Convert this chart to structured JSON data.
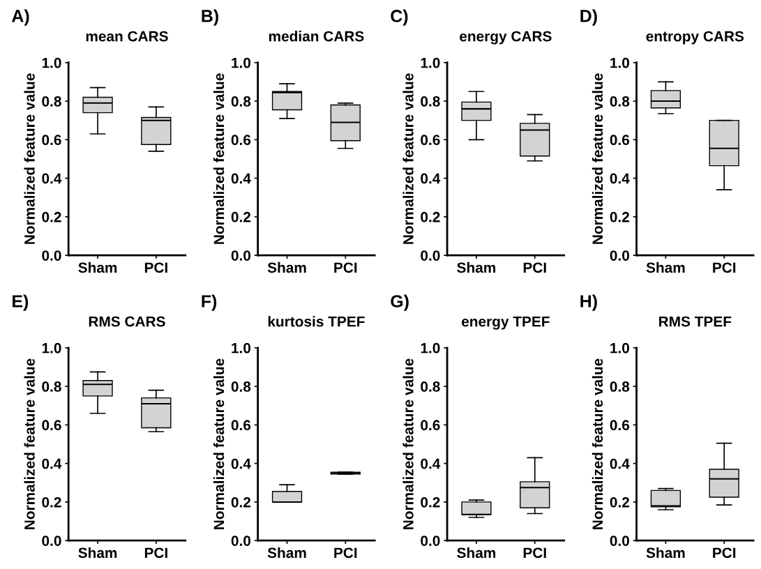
{
  "chart_data": [
    {
      "type": "box",
      "title": "mean CARS",
      "annotations": [
        "A)"
      ],
      "ylabel": "Normalized feature value",
      "categories": [
        "Sham",
        "PCI"
      ],
      "color": "#d3d3d3",
      "ylim": [
        0,
        1
      ],
      "yticks": [
        {
          "value": 0,
          "label": "0.0"
        },
        {
          "value": 0.2,
          "label": "0.2"
        },
        {
          "value": 0.4,
          "label": "0.4"
        },
        {
          "value": 0.6,
          "label": "0.6"
        },
        {
          "value": 0.8,
          "label": "0.8"
        },
        {
          "value": 1,
          "label": "1.0"
        }
      ],
      "boxes": [
        {
          "low": 0.63,
          "q1": 0.74,
          "median": 0.79,
          "q3": 0.82,
          "high": 0.87
        },
        {
          "low": 0.54,
          "q1": 0.575,
          "median": 0.7,
          "q3": 0.715,
          "high": 0.77
        }
      ]
    },
    {
      "type": "box",
      "title": "median CARS",
      "annotations": [
        "B)"
      ],
      "ylabel": "Normalized feature value",
      "categories": [
        "Sham",
        "PCI"
      ],
      "color": "#d3d3d3",
      "ylim": [
        0,
        1
      ],
      "yticks": [
        {
          "value": 0,
          "label": "0.0"
        },
        {
          "value": 0.2,
          "label": "0.2"
        },
        {
          "value": 0.4,
          "label": "0.4"
        },
        {
          "value": 0.6,
          "label": "0.6"
        },
        {
          "value": 0.8,
          "label": "0.8"
        },
        {
          "value": 1,
          "label": "1.0"
        }
      ],
      "boxes": [
        {
          "low": 0.71,
          "q1": 0.755,
          "median": 0.845,
          "q3": 0.85,
          "high": 0.89
        },
        {
          "low": 0.555,
          "q1": 0.595,
          "median": 0.69,
          "q3": 0.78,
          "high": 0.79
        }
      ]
    },
    {
      "type": "box",
      "title": "energy CARS",
      "annotations": [
        "C)"
      ],
      "ylabel": "Normalized feature value",
      "categories": [
        "Sham",
        "PCI"
      ],
      "color": "#d3d3d3",
      "ylim": [
        0,
        1
      ],
      "yticks": [
        {
          "value": 0,
          "label": "0.0"
        },
        {
          "value": 0.2,
          "label": "0.2"
        },
        {
          "value": 0.4,
          "label": "0.4"
        },
        {
          "value": 0.6,
          "label": "0.6"
        },
        {
          "value": 0.8,
          "label": "0.8"
        },
        {
          "value": 1,
          "label": "1.0"
        }
      ],
      "boxes": [
        {
          "low": 0.6,
          "q1": 0.7,
          "median": 0.76,
          "q3": 0.795,
          "high": 0.85
        },
        {
          "low": 0.49,
          "q1": 0.515,
          "median": 0.65,
          "q3": 0.685,
          "high": 0.73
        }
      ]
    },
    {
      "type": "box",
      "title": "entropy CARS",
      "annotations": [
        "D)"
      ],
      "ylabel": "Normalized feature value",
      "categories": [
        "Sham",
        "PCI"
      ],
      "color": "#d3d3d3",
      "ylim": [
        0,
        1
      ],
      "yticks": [
        {
          "value": 0,
          "label": "0.0"
        },
        {
          "value": 0.2,
          "label": "0.2"
        },
        {
          "value": 0.4,
          "label": "0.4"
        },
        {
          "value": 0.6,
          "label": "0.6"
        },
        {
          "value": 0.8,
          "label": "0.8"
        },
        {
          "value": 1,
          "label": "1.0"
        }
      ],
      "boxes": [
        {
          "low": 0.735,
          "q1": 0.765,
          "median": 0.8,
          "q3": 0.855,
          "high": 0.9
        },
        {
          "low": 0.34,
          "q1": 0.465,
          "median": 0.555,
          "q3": 0.7,
          "high": 0.7
        }
      ]
    },
    {
      "type": "box",
      "title": "RMS CARS",
      "annotations": [
        "E)"
      ],
      "ylabel": "Normalized feature value",
      "categories": [
        "Sham",
        "PCI"
      ],
      "color": "#d3d3d3",
      "ylim": [
        0,
        1
      ],
      "yticks": [
        {
          "value": 0,
          "label": "0.0"
        },
        {
          "value": 0.2,
          "label": "0.2"
        },
        {
          "value": 0.4,
          "label": "0.4"
        },
        {
          "value": 0.6,
          "label": "0.6"
        },
        {
          "value": 0.8,
          "label": "0.8"
        },
        {
          "value": 1,
          "label": "1.0"
        }
      ],
      "boxes": [
        {
          "low": 0.66,
          "q1": 0.75,
          "median": 0.81,
          "q3": 0.83,
          "high": 0.875
        },
        {
          "low": 0.565,
          "q1": 0.585,
          "median": 0.71,
          "q3": 0.74,
          "high": 0.78
        }
      ]
    },
    {
      "type": "box",
      "title": "kurtosis TPEF",
      "annotations": [
        "F)"
      ],
      "ylabel": "Normalized feature value",
      "categories": [
        "Sham",
        "PCI"
      ],
      "color": "#d3d3d3",
      "ylim": [
        0,
        1
      ],
      "yticks": [
        {
          "value": 0,
          "label": "0.0"
        },
        {
          "value": 0.2,
          "label": "0.2"
        },
        {
          "value": 0.4,
          "label": "0.4"
        },
        {
          "value": 0.6,
          "label": "0.6"
        },
        {
          "value": 0.8,
          "label": "0.8"
        },
        {
          "value": 1,
          "label": "1.0"
        }
      ],
      "boxes": [
        {
          "low": 0.2,
          "q1": 0.2,
          "median": 0.2,
          "q3": 0.255,
          "high": 0.29
        },
        {
          "low": 0.345,
          "q1": 0.345,
          "median": 0.35,
          "q3": 0.355,
          "high": 0.355
        }
      ]
    },
    {
      "type": "box",
      "title": "energy TPEF",
      "annotations": [
        "G)"
      ],
      "ylabel": "Normalized feature value",
      "categories": [
        "Sham",
        "PCI"
      ],
      "color": "#d3d3d3",
      "ylim": [
        0,
        1
      ],
      "yticks": [
        {
          "value": 0,
          "label": "0.0"
        },
        {
          "value": 0.2,
          "label": "0.2"
        },
        {
          "value": 0.4,
          "label": "0.4"
        },
        {
          "value": 0.6,
          "label": "0.6"
        },
        {
          "value": 0.8,
          "label": "0.8"
        },
        {
          "value": 1,
          "label": "1.0"
        }
      ],
      "boxes": [
        {
          "low": 0.12,
          "q1": 0.135,
          "median": 0.135,
          "q3": 0.2,
          "high": 0.21
        },
        {
          "low": 0.14,
          "q1": 0.17,
          "median": 0.275,
          "q3": 0.305,
          "high": 0.43
        }
      ]
    },
    {
      "type": "box",
      "title": "RMS TPEF",
      "annotations": [
        "H)"
      ],
      "ylabel": "Normalized feature value",
      "categories": [
        "Sham",
        "PCI"
      ],
      "color": "#d3d3d3",
      "ylim": [
        0,
        1
      ],
      "yticks": [
        {
          "value": 0,
          "label": "0.0"
        },
        {
          "value": 0.2,
          "label": "0.2"
        },
        {
          "value": 0.4,
          "label": "0.4"
        },
        {
          "value": 0.6,
          "label": "0.6"
        },
        {
          "value": 0.8,
          "label": "0.8"
        },
        {
          "value": 1,
          "label": "1.0"
        }
      ],
      "boxes": [
        {
          "low": 0.16,
          "q1": 0.175,
          "median": 0.18,
          "q3": 0.26,
          "high": 0.27
        },
        {
          "low": 0.185,
          "q1": 0.225,
          "median": 0.32,
          "q3": 0.37,
          "high": 0.505
        }
      ]
    }
  ]
}
